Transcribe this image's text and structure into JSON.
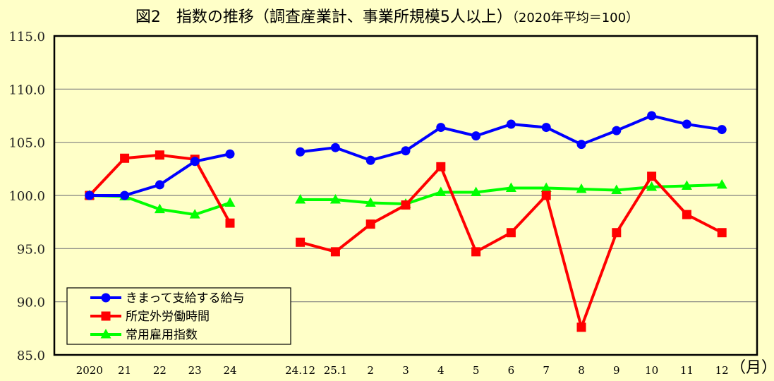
{
  "title": {
    "main": "図2　指数の推移（調査産業計、事業所規模5人以上）",
    "sub": "（2020年平均＝100）"
  },
  "colors": {
    "background": "#FFFFC8",
    "gridline": "#808080",
    "axis": "#000000",
    "wages": "#0000FF",
    "overtime": "#FF0000",
    "employment": "#00FF00"
  },
  "chart_data": {
    "type": "line",
    "title": "図2　指数の推移（調査産業計、事業所規模5人以上）（2020年平均＝100）",
    "xlabel": "（月）",
    "ylabel": "",
    "ylim": [
      85.0,
      115.0
    ],
    "yticks": [
      "115.0",
      "110.0",
      "105.0",
      "100.0",
      "95.0",
      "90.0",
      "85.0"
    ],
    "grid": true,
    "legend_position": "lower-left inside",
    "categories": [
      "2020",
      "21",
      "22",
      "23",
      "24",
      "",
      "24.12",
      "25.1",
      "2",
      "3",
      "4",
      "5",
      "6",
      "7",
      "8",
      "9",
      "10",
      "11",
      "12"
    ],
    "series": [
      {
        "name": "きまって支給する給与",
        "color": "#0000FF",
        "marker": "circle",
        "values": [
          100.0,
          100.0,
          101.0,
          103.2,
          103.9,
          null,
          104.1,
          104.5,
          103.3,
          104.2,
          106.4,
          105.6,
          106.7,
          106.4,
          104.8,
          106.1,
          107.5,
          106.7,
          106.2
        ]
      },
      {
        "name": "所定外労働時間",
        "color": "#FF0000",
        "marker": "square",
        "values": [
          100.0,
          103.5,
          103.8,
          103.4,
          97.4,
          null,
          95.6,
          94.7,
          97.3,
          99.1,
          102.7,
          94.7,
          96.5,
          100.0,
          87.6,
          96.5,
          101.8,
          98.2,
          96.5
        ]
      },
      {
        "name": "常用雇用指数",
        "color": "#00FF00",
        "marker": "triangle",
        "values": [
          100.0,
          99.9,
          98.7,
          98.2,
          99.3,
          null,
          99.6,
          99.6,
          99.3,
          99.2,
          100.3,
          100.3,
          100.7,
          100.7,
          100.6,
          100.5,
          100.8,
          100.9,
          101.0
        ]
      }
    ]
  },
  "legend": {
    "items": [
      {
        "label": "きまって支給する給与"
      },
      {
        "label": "所定外労働時間"
      },
      {
        "label": "常用雇用指数"
      }
    ]
  },
  "axis": {
    "unit_label": "（月）"
  }
}
